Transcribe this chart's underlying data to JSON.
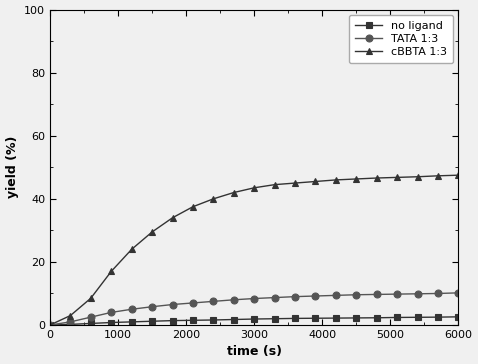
{
  "title": "",
  "xlabel": "time (s)",
  "ylabel": "yield (%)",
  "xlim": [
    0,
    6000
  ],
  "ylim": [
    0,
    100
  ],
  "xticks": [
    0,
    1000,
    2000,
    3000,
    4000,
    5000,
    6000
  ],
  "yticks": [
    0,
    20,
    40,
    60,
    80,
    100
  ],
  "series": [
    {
      "label": "no ligand",
      "color": "#333333",
      "marker": "s",
      "markersize": 4,
      "x": [
        0,
        300,
        600,
        900,
        1200,
        1500,
        1800,
        2100,
        2400,
        2700,
        3000,
        3300,
        3600,
        3900,
        4200,
        4500,
        4800,
        5100,
        5400,
        5700,
        6000
      ],
      "y": [
        0,
        0.2,
        0.5,
        0.8,
        1.0,
        1.2,
        1.4,
        1.5,
        1.6,
        1.75,
        1.9,
        2.0,
        2.1,
        2.15,
        2.2,
        2.25,
        2.3,
        2.4,
        2.45,
        2.5,
        2.6
      ]
    },
    {
      "label": "TATA 1:3",
      "color": "#555555",
      "marker": "o",
      "markersize": 5,
      "x": [
        0,
        300,
        600,
        900,
        1200,
        1500,
        1800,
        2100,
        2400,
        2700,
        3000,
        3300,
        3600,
        3900,
        4200,
        4500,
        4800,
        5100,
        5400,
        5700,
        6000
      ],
      "y": [
        0,
        1.0,
        2.5,
        4.0,
        5.0,
        5.8,
        6.5,
        7.0,
        7.5,
        8.0,
        8.4,
        8.7,
        9.0,
        9.2,
        9.4,
        9.6,
        9.7,
        9.8,
        9.9,
        10.0,
        10.2
      ]
    },
    {
      "label": "cBBTA 1:3",
      "color": "#333333",
      "marker": "^",
      "markersize": 5,
      "x": [
        0,
        300,
        600,
        900,
        1200,
        1500,
        1800,
        2100,
        2400,
        2700,
        3000,
        3300,
        3600,
        3900,
        4200,
        4500,
        4800,
        5100,
        5400,
        5700,
        6000
      ],
      "y": [
        0,
        3.0,
        8.5,
        17.0,
        24.0,
        29.5,
        34.0,
        37.5,
        40.0,
        42.0,
        43.5,
        44.5,
        45.0,
        45.5,
        46.0,
        46.3,
        46.6,
        46.8,
        47.0,
        47.3,
        47.5
      ]
    }
  ],
  "background_color": "#f0f0f0",
  "plot_bg_color": "#f0f0f0",
  "legend_fontsize": 8,
  "axis_label_fontsize": 9,
  "tick_fontsize": 8,
  "linewidth": 1.0
}
